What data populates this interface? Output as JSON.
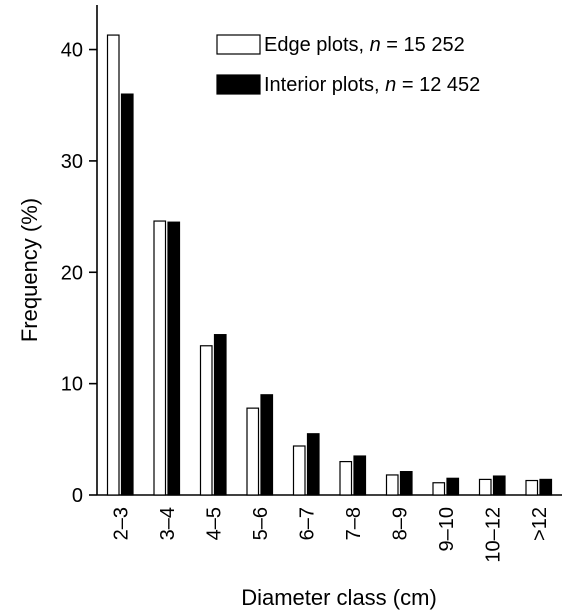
{
  "chart_data": {
    "type": "bar",
    "xlabel": "Diameter class (cm)",
    "ylabel": "Frequency (%)",
    "ylim": [
      0,
      44
    ],
    "yticks": [
      "0",
      "10",
      "20",
      "30",
      "40"
    ],
    "grid": false,
    "legend_position": "top-right",
    "categories": [
      "2–3",
      "3–4",
      "4–5",
      "5–6",
      "6–7",
      "7–8",
      "8–9",
      "9–10",
      "10–12",
      ">12"
    ],
    "series": [
      {
        "name": "Edge plots, n = 15 252",
        "name_prefix": "Edge plots, ",
        "name_var": "n",
        "name_suffix": " = 15 252",
        "fill": "#ffffff",
        "values": [
          41.3,
          24.6,
          13.4,
          7.8,
          4.4,
          3.0,
          1.8,
          1.1,
          1.4,
          1.3
        ]
      },
      {
        "name": "Interior plots, n = 12 452",
        "name_prefix": "Interior plots, ",
        "name_var": "n",
        "name_suffix": " = 12 452",
        "fill": "#000000",
        "values": [
          36.0,
          24.5,
          14.4,
          9.0,
          5.5,
          3.5,
          2.1,
          1.5,
          1.7,
          1.4
        ]
      }
    ]
  }
}
